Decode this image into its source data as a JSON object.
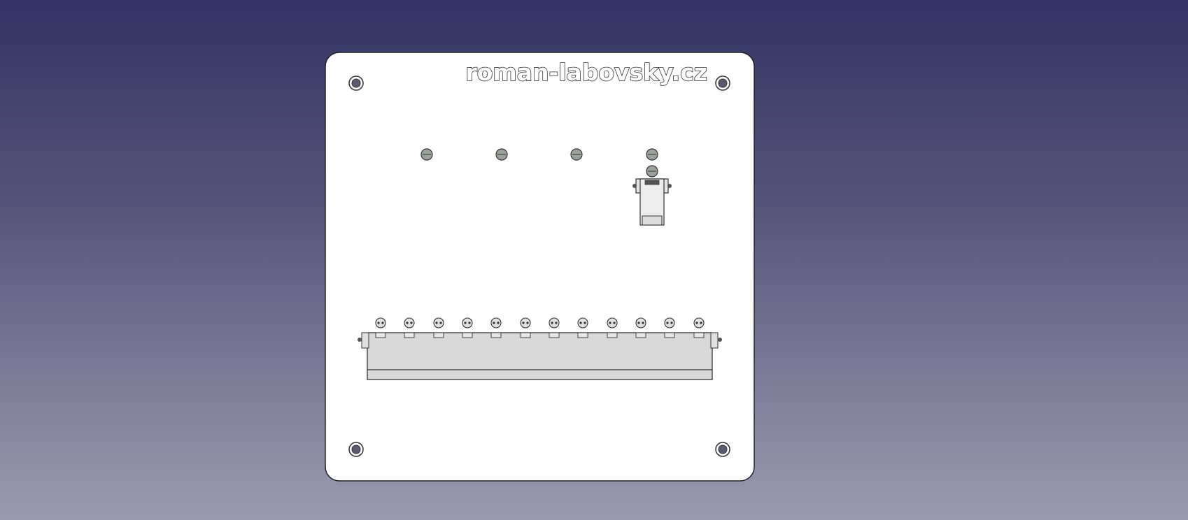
{
  "viewport": {
    "background_top": "#333366",
    "background_bottom": "#9a9aae"
  },
  "panel": {
    "fill": "#ffffff",
    "edge": "#222222",
    "logo_text": "roman-labovsky.cz"
  },
  "hardware": {
    "mounting_hole_icon": "mounting-hole-icon",
    "screw_icon": "screw-head-icon",
    "rail_fill": "#d9d9d9",
    "screw_fill": "#9aa39a",
    "hole_fill": "#5a5a70"
  }
}
